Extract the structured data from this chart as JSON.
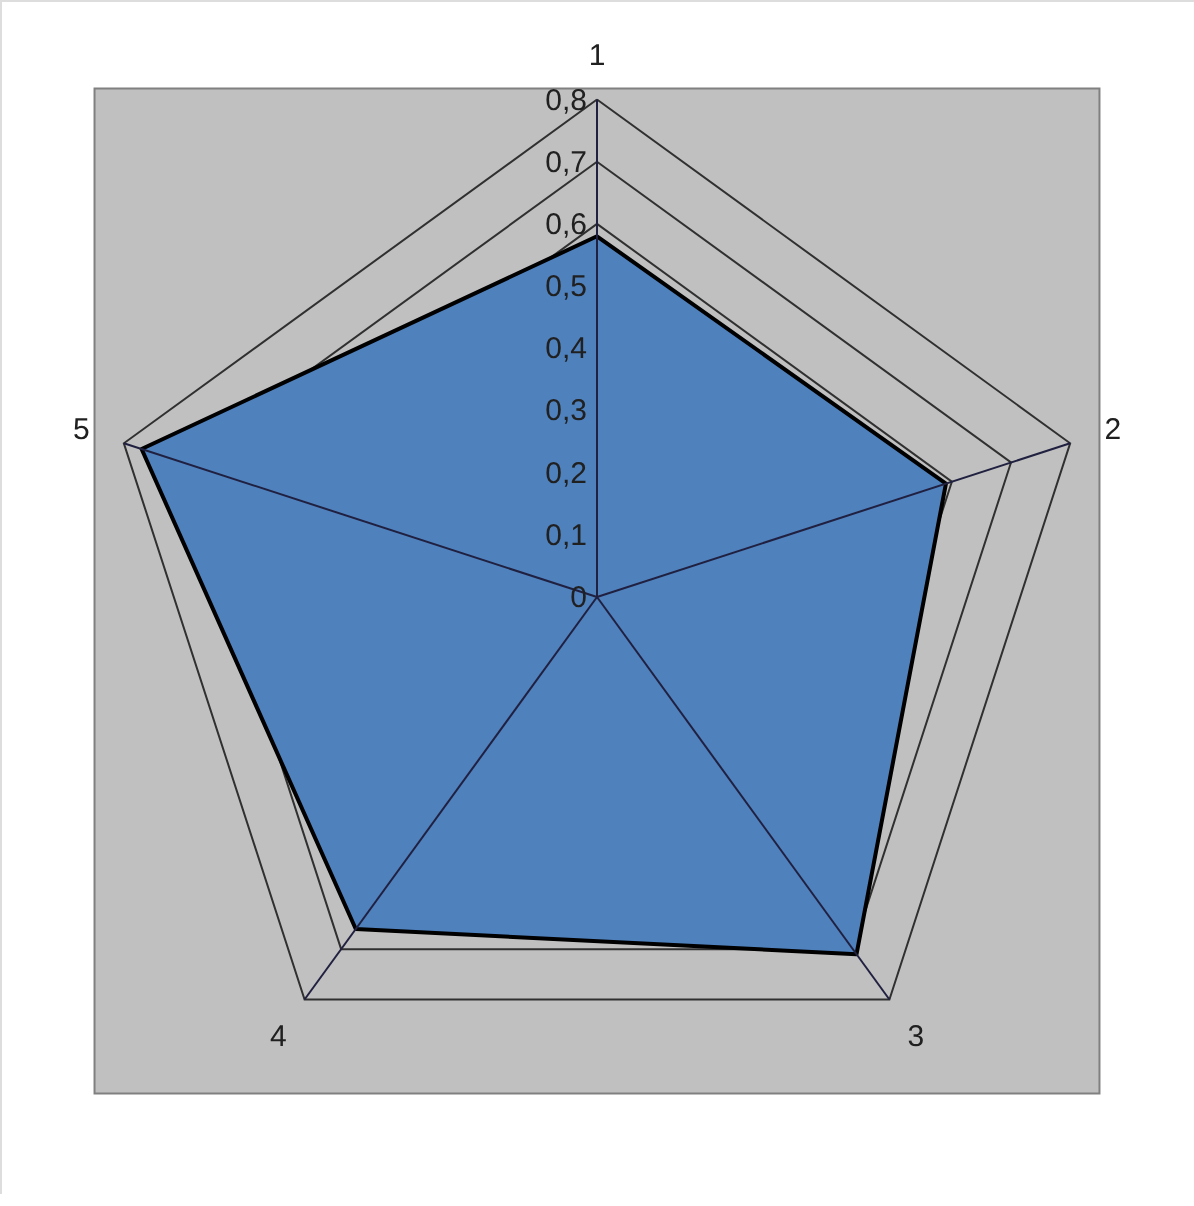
{
  "chart_data": {
    "type": "radar",
    "categories": [
      "1",
      "2",
      "3",
      "4",
      "5"
    ],
    "series": [
      {
        "color": "#4f81bd",
        "values": [
          0.58,
          0.59,
          0.71,
          0.66,
          0.77
        ]
      }
    ],
    "ylim": [
      0,
      0.8
    ],
    "yticks": [
      0,
      {
        "value": 0.1,
        "label": "0,1"
      },
      {
        "value": 0.2,
        "label": "0,2"
      },
      {
        "value": 0.3,
        "label": "0,3"
      },
      {
        "value": 0.4,
        "label": "0,4"
      },
      {
        "value": 0.5,
        "label": "0,5"
      },
      {
        "value": 0.6,
        "label": "0,6"
      },
      {
        "value": 0.7,
        "label": "0,7"
      },
      {
        "value": 0.8,
        "label": "0,8"
      }
    ],
    "grid": true
  }
}
